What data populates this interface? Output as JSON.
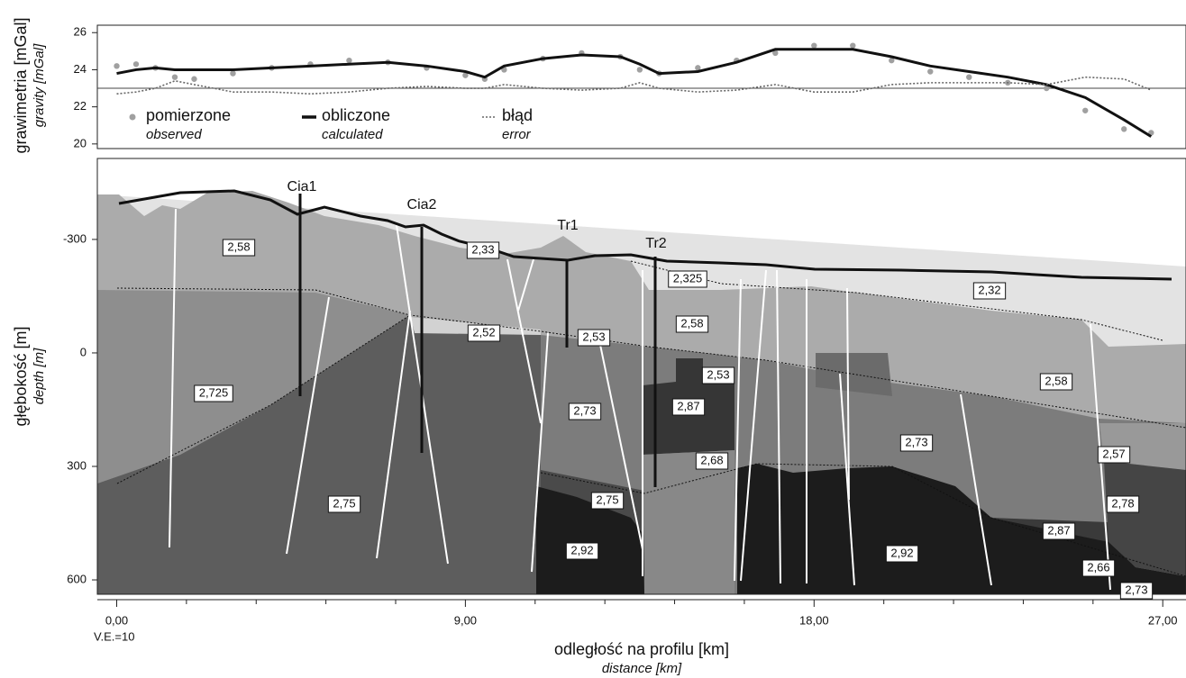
{
  "chart_data": [
    {
      "type": "line",
      "x": [
        0,
        0.5,
        1,
        1.5,
        2,
        3,
        4,
        5,
        6,
        7,
        8,
        9,
        9.5,
        10,
        11,
        12,
        13,
        13.5,
        14,
        15,
        16,
        17,
        18,
        19,
        20,
        21,
        22,
        23,
        24,
        25,
        26,
        26.7
      ],
      "series": [
        {
          "name": "pomierzone",
          "name_en": "observed",
          "kind": "dots",
          "color": "#a0a0a0",
          "values": [
            24.2,
            24.3,
            24.1,
            23.6,
            23.5,
            23.8,
            24.1,
            24.3,
            24.5,
            24.4,
            24.1,
            23.7,
            23.5,
            24.0,
            24.6,
            24.9,
            24.7,
            24.0,
            23.8,
            24.1,
            24.5,
            24.9,
            25.3,
            25.3,
            24.5,
            23.9,
            23.6,
            23.3,
            23.0,
            21.8,
            20.8,
            20.6
          ]
        },
        {
          "name": "obliczone",
          "name_en": "calculated",
          "kind": "line",
          "color": "#111111",
          "values": [
            23.8,
            24.0,
            24.1,
            24.0,
            24.0,
            24.0,
            24.1,
            24.2,
            24.3,
            24.4,
            24.2,
            23.9,
            23.6,
            24.2,
            24.6,
            24.8,
            24.7,
            24.3,
            23.8,
            23.9,
            24.4,
            25.1,
            25.1,
            25.1,
            24.7,
            24.2,
            23.9,
            23.6,
            23.2,
            22.5,
            21.3,
            20.4
          ]
        },
        {
          "name": "błąd",
          "name_en": "error",
          "kind": "dotted",
          "color": "#666666",
          "values": [
            22.7,
            22.8,
            23.0,
            23.4,
            23.2,
            22.8,
            22.8,
            22.7,
            22.8,
            23.0,
            23.1,
            23.0,
            23.0,
            23.2,
            23.0,
            22.9,
            23.0,
            23.3,
            23.0,
            22.8,
            22.9,
            23.2,
            22.8,
            22.8,
            23.2,
            23.3,
            23.3,
            23.3,
            23.2,
            23.6,
            23.5,
            22.9
          ]
        }
      ],
      "hline": 23,
      "xlim": [
        -0.5,
        27.6
      ],
      "ylim": [
        19.75,
        26.4
      ],
      "yticks": [
        20,
        22,
        24,
        26
      ],
      "ylabel": "grawimetria [mGal]",
      "ylabel_en": "gravity [mGal]"
    },
    {
      "type": "cross-section",
      "xlim": [
        -0.5,
        27.6
      ],
      "xticks": [
        {
          "value": 0,
          "label": "0,00"
        },
        {
          "value": 9,
          "label": "9,00"
        },
        {
          "value": 18,
          "label": "18,00"
        },
        {
          "value": 27,
          "label": "27,00"
        }
      ],
      "ylim": [
        -514,
        638
      ],
      "y_inverted": true,
      "yticks": [
        -300,
        0,
        300,
        600
      ],
      "xlabel": "odległość na profilu [km]",
      "xlabel_en": "distance [km]",
      "ylabel": "głębokość [m]",
      "ylabel_en": "depth [m]",
      "note": "V.E.=10",
      "wells": [
        "Cia1",
        "Cia2",
        "Tr1",
        "Tr2"
      ],
      "densities": [
        "2,58",
        "2,33",
        "2,325",
        "2,32",
        "2,52",
        "2,53",
        "2,58",
        "2,53",
        "2,725",
        "2,73",
        "2,87",
        "2,58",
        "2,73",
        "2,57",
        "2,68",
        "2,75",
        "2,75",
        "2,78",
        "2,87",
        "2,92",
        "2,92",
        "2,66",
        "2,73"
      ]
    }
  ]
}
